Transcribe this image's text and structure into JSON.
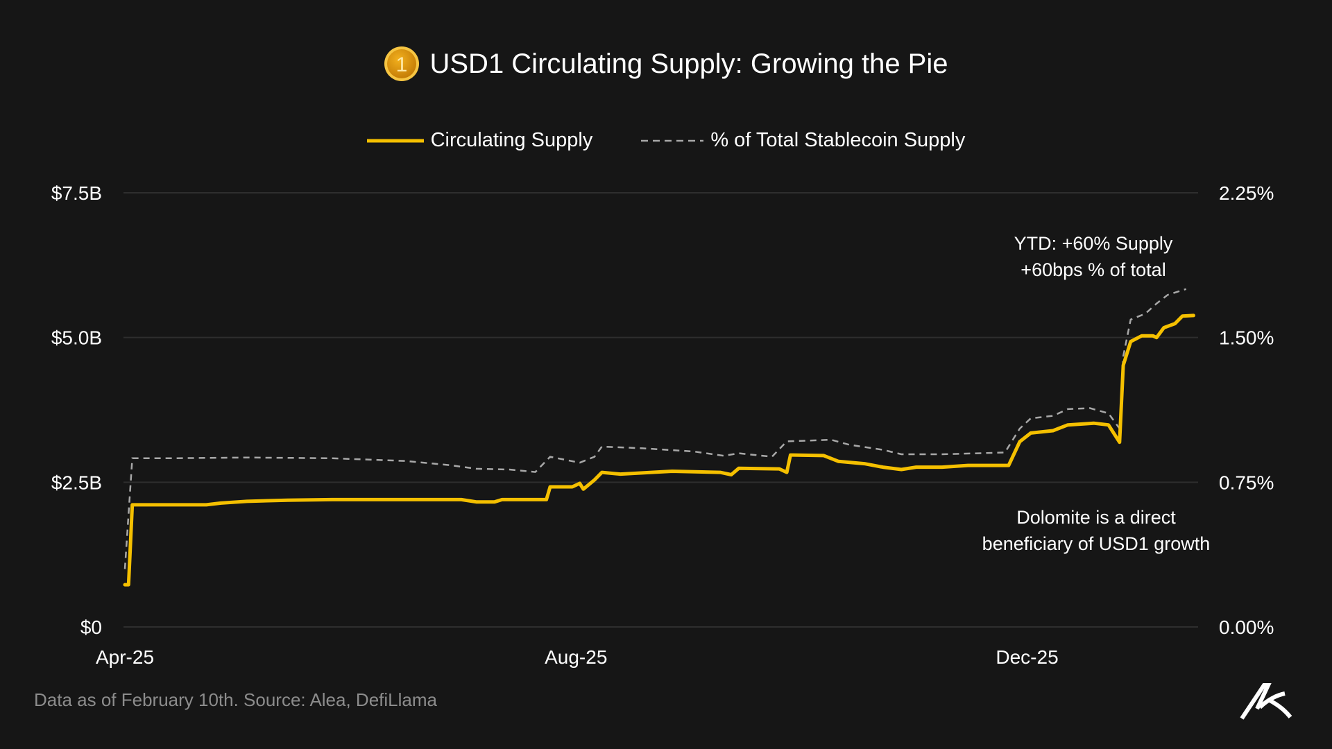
{
  "title": "USD1 Circulating Supply: Growing the Pie",
  "title_icon": "usd1-coin-icon",
  "coin_label": "1",
  "footer": "Data as of February 10th. Source: Alea, DefiLlama",
  "logo": "alea-logo",
  "colors": {
    "background": "#161616",
    "supply": "#f5c000",
    "share": "#a8a8a8",
    "grid": "#2e2e2e"
  },
  "chart_data": {
    "type": "line",
    "title": "USD1 Circulating Supply: Growing the Pie",
    "legend_position": "top-center",
    "grid": true,
    "x_ticks": [
      {
        "date": "2025-04-01",
        "label": "Apr-25"
      },
      {
        "date": "2025-08-01",
        "label": "Aug-25"
      },
      {
        "date": "2025-12-01",
        "label": "Dec-25"
      }
    ],
    "y_left": {
      "range": [
        0,
        7.5
      ],
      "ticks": [
        {
          "v": 0,
          "label": "$0"
        },
        {
          "v": 2.5,
          "label": "$2.5B"
        },
        {
          "v": 5,
          "label": "$5.0B"
        },
        {
          "v": 7.5,
          "label": "$7.5B"
        }
      ],
      "unit": "$B"
    },
    "y_right": {
      "range": [
        0,
        2.25
      ],
      "ticks": [
        {
          "v": 0,
          "label": "0.00%"
        },
        {
          "v": 0.75,
          "label": "0.75%"
        },
        {
          "v": 1.5,
          "label": "1.50%"
        },
        {
          "v": 2.25,
          "label": "2.25%"
        }
      ],
      "unit": "%"
    },
    "series": [
      {
        "name": "Circulating Supply",
        "axis": "left",
        "style": "solid",
        "points": [
          [
            "2025-04-01",
            0.73
          ],
          [
            "2025-04-02",
            0.73
          ],
          [
            "2025-04-03",
            2.11
          ],
          [
            "2025-04-23",
            2.11
          ],
          [
            "2025-04-27",
            2.14
          ],
          [
            "2025-05-04",
            2.17
          ],
          [
            "2025-05-15",
            2.19
          ],
          [
            "2025-05-27",
            2.2
          ],
          [
            "2025-07-01",
            2.2
          ],
          [
            "2025-07-05",
            2.16
          ],
          [
            "2025-07-10",
            2.16
          ],
          [
            "2025-07-12",
            2.2
          ],
          [
            "2025-07-24",
            2.2
          ],
          [
            "2025-07-25",
            2.42
          ],
          [
            "2025-07-31",
            2.42
          ],
          [
            "2025-08-02",
            2.48
          ],
          [
            "2025-08-03",
            2.38
          ],
          [
            "2025-08-06",
            2.54
          ],
          [
            "2025-08-08",
            2.67
          ],
          [
            "2025-08-13",
            2.64
          ],
          [
            "2025-08-27",
            2.69
          ],
          [
            "2025-09-09",
            2.67
          ],
          [
            "2025-09-12",
            2.63
          ],
          [
            "2025-09-14",
            2.74
          ],
          [
            "2025-09-25",
            2.73
          ],
          [
            "2025-09-27",
            2.67
          ],
          [
            "2025-09-28",
            2.97
          ],
          [
            "2025-10-07",
            2.96
          ],
          [
            "2025-10-11",
            2.86
          ],
          [
            "2025-10-18",
            2.82
          ],
          [
            "2025-10-23",
            2.76
          ],
          [
            "2025-10-28",
            2.72
          ],
          [
            "2025-11-01",
            2.76
          ],
          [
            "2025-11-08",
            2.76
          ],
          [
            "2025-11-15",
            2.79
          ],
          [
            "2025-11-26",
            2.79
          ],
          [
            "2025-11-29",
            3.2
          ],
          [
            "2025-12-02",
            3.35
          ],
          [
            "2025-12-08",
            3.39
          ],
          [
            "2025-12-12",
            3.49
          ],
          [
            "2025-12-19",
            3.52
          ],
          [
            "2025-12-23",
            3.49
          ],
          [
            "2025-12-26",
            3.19
          ],
          [
            "2025-12-27",
            4.52
          ],
          [
            "2025-12-29",
            4.93
          ],
          [
            "2026-01-01",
            5.03
          ],
          [
            "2026-01-04",
            5.03
          ],
          [
            "2026-01-05",
            5.0
          ],
          [
            "2026-01-07",
            5.17
          ],
          [
            "2026-01-10",
            5.24
          ],
          [
            "2026-01-12",
            5.37
          ],
          [
            "2026-01-15",
            5.38
          ]
        ]
      },
      {
        "name": "% of Total Stablecoin Supply",
        "axis": "right",
        "style": "dashed",
        "points": [
          [
            "2025-04-01",
            0.3
          ],
          [
            "2025-04-03",
            0.874
          ],
          [
            "2025-04-13",
            0.874
          ],
          [
            "2025-05-04",
            0.878
          ],
          [
            "2025-05-27",
            0.874
          ],
          [
            "2025-06-16",
            0.86
          ],
          [
            "2025-06-28",
            0.838
          ],
          [
            "2025-07-05",
            0.82
          ],
          [
            "2025-07-14",
            0.816
          ],
          [
            "2025-07-21",
            0.803
          ],
          [
            "2025-07-25",
            0.882
          ],
          [
            "2025-08-02",
            0.851
          ],
          [
            "2025-08-06",
            0.882
          ],
          [
            "2025-08-08",
            0.935
          ],
          [
            "2025-08-19",
            0.926
          ],
          [
            "2025-09-02",
            0.909
          ],
          [
            "2025-09-10",
            0.887
          ],
          [
            "2025-09-14",
            0.9
          ],
          [
            "2025-09-23",
            0.882
          ],
          [
            "2025-09-27",
            0.962
          ],
          [
            "2025-10-09",
            0.97
          ],
          [
            "2025-10-14",
            0.944
          ],
          [
            "2025-10-23",
            0.918
          ],
          [
            "2025-10-28",
            0.895
          ],
          [
            "2025-11-08",
            0.895
          ],
          [
            "2025-11-25",
            0.904
          ],
          [
            "2025-11-29",
            1.028
          ],
          [
            "2025-12-02",
            1.081
          ],
          [
            "2025-12-08",
            1.094
          ],
          [
            "2025-12-12",
            1.129
          ],
          [
            "2025-12-18",
            1.134
          ],
          [
            "2025-12-23",
            1.107
          ],
          [
            "2025-12-26",
            1.028
          ],
          [
            "2025-12-27",
            1.403
          ],
          [
            "2025-12-29",
            1.593
          ],
          [
            "2026-01-02",
            1.624
          ],
          [
            "2026-01-05",
            1.676
          ],
          [
            "2026-01-08",
            1.721
          ],
          [
            "2026-01-13",
            1.751
          ]
        ]
      }
    ],
    "annotations": [
      {
        "lines": [
          "YTD: +60% Supply",
          "+60bps % of total"
        ]
      },
      {
        "lines": [
          "Dolomite is a direct",
          "beneficiary of USD1 growth"
        ]
      }
    ]
  }
}
